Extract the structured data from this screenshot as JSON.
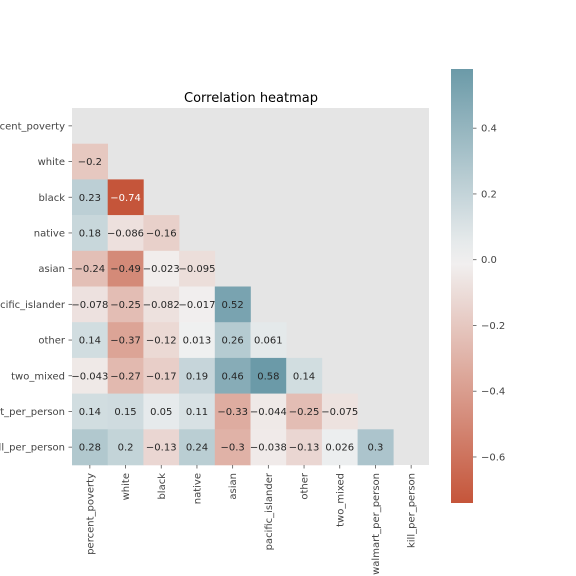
{
  "chart_data": {
    "type": "heatmap",
    "title": "Correlation heatmap",
    "mask": "upper-triangle",
    "labels": [
      "percent_poverty",
      "white",
      "black",
      "native",
      "asian",
      "pacific_islander",
      "other",
      "two_mixed",
      "walmart_per_person",
      "kill_per_person"
    ],
    "matrix": [
      [
        null,
        null,
        null,
        null,
        null,
        null,
        null,
        null,
        null,
        null
      ],
      [
        -0.2,
        null,
        null,
        null,
        null,
        null,
        null,
        null,
        null,
        null
      ],
      [
        0.23,
        -0.74,
        null,
        null,
        null,
        null,
        null,
        null,
        null,
        null
      ],
      [
        0.18,
        -0.086,
        -0.16,
        null,
        null,
        null,
        null,
        null,
        null,
        null
      ],
      [
        -0.24,
        -0.49,
        -0.023,
        -0.095,
        null,
        null,
        null,
        null,
        null,
        null
      ],
      [
        -0.078,
        -0.25,
        -0.082,
        -0.017,
        0.52,
        null,
        null,
        null,
        null,
        null
      ],
      [
        0.14,
        -0.37,
        -0.12,
        0.013,
        0.26,
        0.061,
        null,
        null,
        null,
        null
      ],
      [
        -0.043,
        -0.27,
        -0.17,
        0.19,
        0.46,
        0.58,
        0.14,
        null,
        null,
        null
      ],
      [
        0.14,
        0.15,
        0.05,
        0.11,
        -0.33,
        -0.044,
        -0.25,
        -0.075,
        null,
        null
      ],
      [
        0.28,
        0.2,
        -0.13,
        0.24,
        -0.3,
        -0.038,
        -0.13,
        0.026,
        0.3,
        null
      ]
    ],
    "colorbar": {
      "range": [
        -0.74,
        0.58
      ],
      "ticks": [
        0.4,
        0.2,
        0.0,
        -0.2,
        -0.4,
        -0.6
      ],
      "tick_labels": [
        "0.4",
        "0.2",
        "0.0",
        "−0.2",
        "−0.4",
        "−0.6"
      ]
    },
    "colors": {
      "negative": "#c5553a",
      "neutral": "#f2f2f2",
      "positive": "#6b9aa8",
      "masked_background": "#e5e5e5"
    }
  }
}
